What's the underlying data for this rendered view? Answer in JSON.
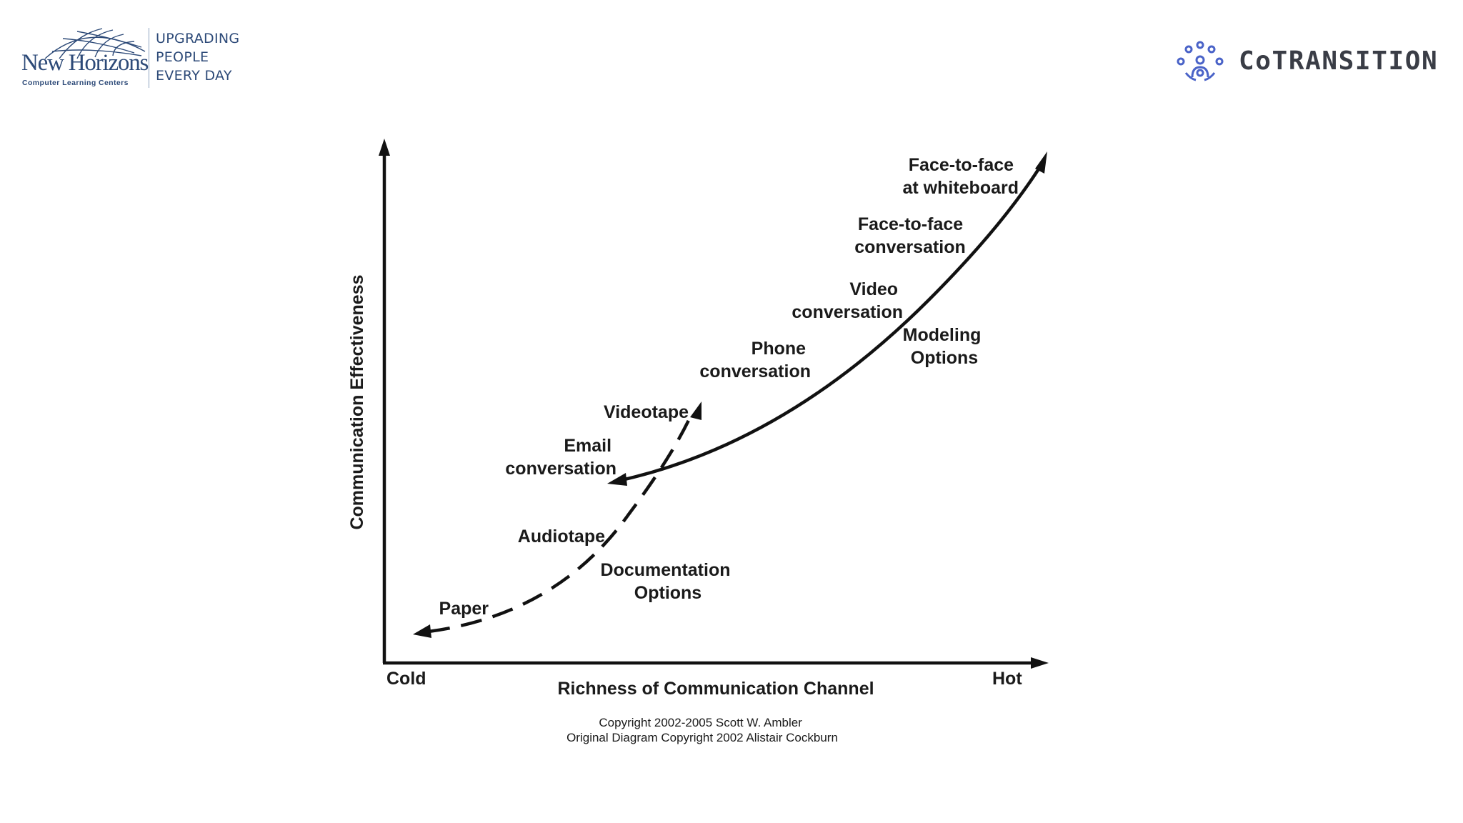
{
  "header": {
    "left_logo": {
      "name": "New Horizons",
      "sub": "Computer Learning Centers",
      "tagline": [
        "UPGRADING",
        "PEOPLE",
        "EVERY DAY"
      ]
    },
    "right_logo": {
      "name": "CoTRANSITION",
      "icon": "network-people-icon"
    }
  },
  "diagram": {
    "y_axis_label": "Communication Effectiveness",
    "x_axis_label": "Richness of Communication Channel",
    "x_min_label": "Cold",
    "x_max_label": "Hot",
    "modeling_group": {
      "label": [
        "Modeling",
        "Options"
      ],
      "line_style": "solid",
      "items": [
        {
          "label": [
            "Email",
            "conversation"
          ]
        },
        {
          "label": [
            "Phone",
            "conversation"
          ]
        },
        {
          "label": [
            "Video",
            "conversation"
          ]
        },
        {
          "label": [
            "Face-to-face",
            "conversation"
          ]
        },
        {
          "label": [
            "Face-to-face",
            "at whiteboard"
          ]
        }
      ]
    },
    "documentation_group": {
      "label": [
        "Documentation",
        "Options"
      ],
      "line_style": "dashed",
      "items": [
        {
          "label": [
            "Paper"
          ]
        },
        {
          "label": [
            "Audiotape"
          ]
        },
        {
          "label": [
            "Videotape"
          ]
        }
      ]
    },
    "copyright": [
      "Copyright 2002-2005 Scott W. Ambler",
      "Original Diagram Copyright 2002 Alistair Cockburn"
    ]
  }
}
